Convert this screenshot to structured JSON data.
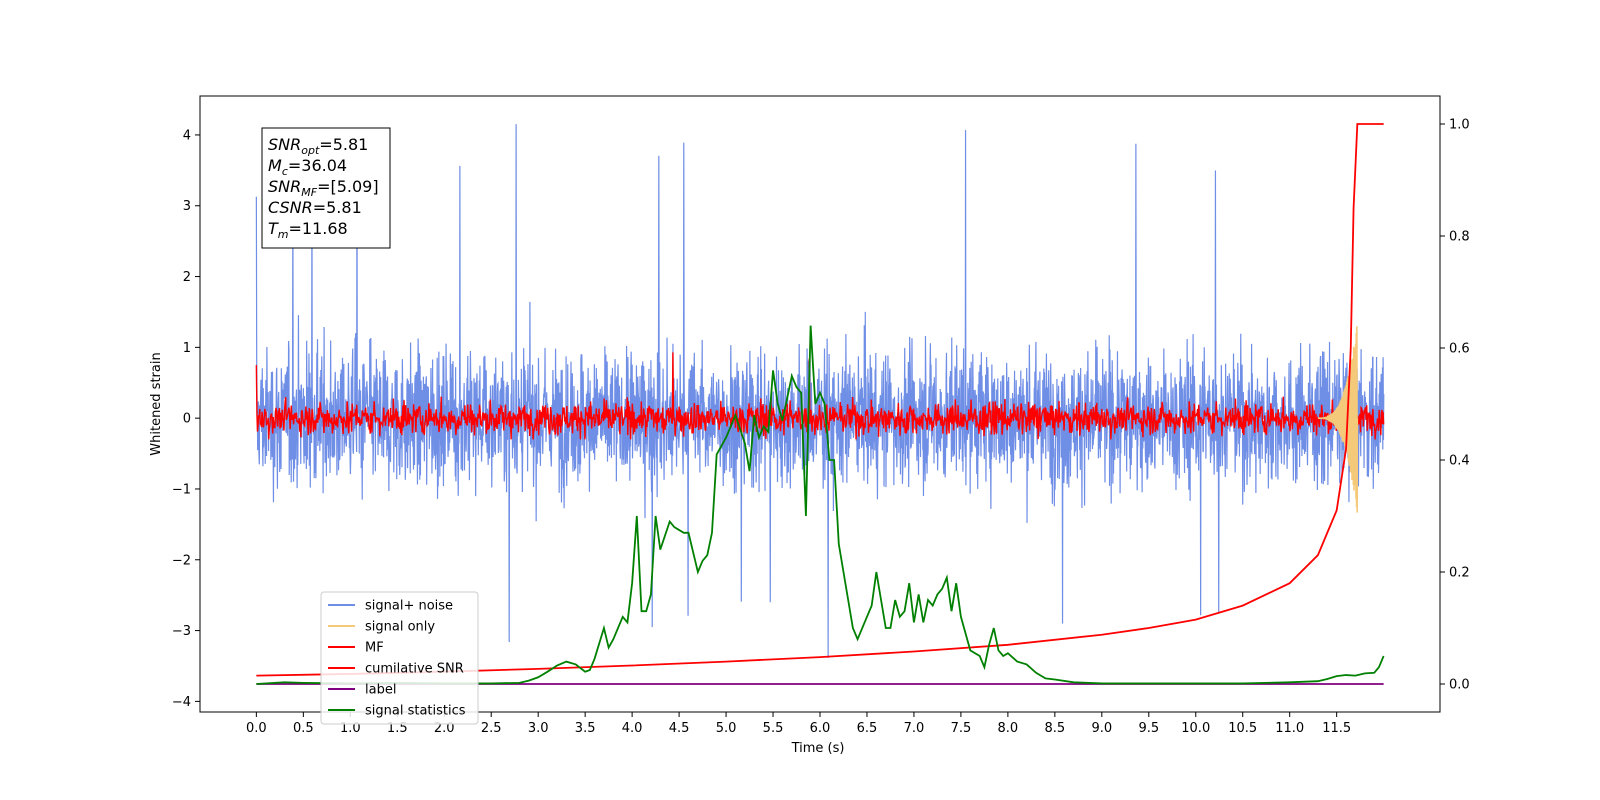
{
  "chart_data": {
    "type": "line",
    "xlabel": "Time (s)",
    "ylabel": "Whitened strain",
    "xlim": [
      -0.6,
      12.6
    ],
    "ylim": [
      -4.15,
      4.55
    ],
    "ylim_right": [
      -0.05,
      1.05
    ],
    "x_ticks": [
      0.0,
      0.5,
      1.0,
      1.5,
      2.0,
      2.5,
      3.0,
      3.5,
      4.0,
      4.5,
      5.0,
      5.5,
      6.0,
      6.5,
      7.0,
      7.5,
      8.0,
      8.5,
      9.0,
      9.5,
      10.0,
      10.5,
      11.0,
      11.5
    ],
    "x_tick_labels": [
      "0.0",
      "0.5",
      "1.0",
      "1.5",
      "2.0",
      "2.5",
      "3.0",
      "3.5",
      "4.0",
      "4.5",
      "5.0",
      "5.5",
      "6.0",
      "6.5",
      "7.0",
      "7.5",
      "8.0",
      "8.5",
      "9.0",
      "9.5",
      "10.0",
      "10.5",
      "11.0",
      "11.5"
    ],
    "y_ticks": [
      -4,
      -3,
      -2,
      -1,
      0,
      1,
      2,
      3,
      4
    ],
    "y_tick_labels": [
      "−4",
      "−3",
      "−2",
      "−1",
      "0",
      "1",
      "2",
      "3",
      "4"
    ],
    "y_ticks_right": [
      0.0,
      0.2,
      0.4,
      0.6,
      0.8,
      1.0
    ],
    "y_tick_labels_right": [
      "0.0",
      "0.2",
      "0.4",
      "0.6",
      "0.8",
      "1.0"
    ],
    "grid": false,
    "legend_position": "lower-left",
    "annotation": [
      {
        "var": "SNR",
        "sub": "opt",
        "rest": "=5.81"
      },
      {
        "var": "M",
        "sub": "c",
        "rest": "=36.04"
      },
      {
        "var": "SNR",
        "sub": "MF",
        "rest": "=[5.09]"
      },
      {
        "var": "CSNR",
        "sub": "",
        "rest": "=5.81"
      },
      {
        "var": "T",
        "sub": "m",
        "rest": "=11.68"
      }
    ],
    "series": [
      {
        "name": "signal+ noise",
        "color": "#6f8ee6",
        "axis": "left",
        "kind": "noise",
        "x_range": [
          0,
          12
        ],
        "mean": 0,
        "band": 1.2,
        "spike_max": 4.17,
        "spike_min": -3.45
      },
      {
        "name": "signal only",
        "color": "#f5c97a",
        "axis": "left",
        "kind": "chirp",
        "x_range": [
          11.3,
          11.72
        ],
        "amplitude_peak": 1.35
      },
      {
        "name": "MF",
        "color": "#ff0000",
        "axis": "left",
        "kind": "noise",
        "x_range": [
          0,
          12
        ],
        "mean": 0,
        "band": 0.3,
        "spike_max": 1.0,
        "spike_min": -0.3
      },
      {
        "name": "cumilative SNR",
        "color": "#ff0000",
        "axis": "right",
        "x": [
          0.0,
          1.0,
          2.0,
          3.0,
          4.0,
          5.0,
          6.0,
          7.0,
          8.0,
          9.0,
          9.5,
          10.0,
          10.5,
          11.0,
          11.3,
          11.5,
          11.6,
          11.65,
          11.68,
          11.72,
          12.0
        ],
        "y": [
          0.015,
          0.018,
          0.022,
          0.027,
          0.033,
          0.04,
          0.048,
          0.058,
          0.07,
          0.088,
          0.1,
          0.115,
          0.14,
          0.18,
          0.23,
          0.31,
          0.42,
          0.6,
          0.85,
          1.0,
          1.0
        ]
      },
      {
        "name": "label",
        "color": "#800080",
        "axis": "right",
        "x": [
          0.0,
          12.0
        ],
        "y": [
          0.0,
          0.0
        ]
      },
      {
        "name": "signal statistics",
        "color": "#008000",
        "axis": "right",
        "x": [
          0.0,
          0.3,
          0.5,
          1.0,
          1.5,
          2.0,
          2.5,
          2.8,
          2.9,
          3.0,
          3.1,
          3.2,
          3.3,
          3.4,
          3.5,
          3.55,
          3.6,
          3.7,
          3.75,
          3.8,
          3.85,
          3.9,
          3.95,
          4.0,
          4.05,
          4.1,
          4.15,
          4.2,
          4.25,
          4.3,
          4.4,
          4.45,
          4.55,
          4.6,
          4.7,
          4.75,
          4.8,
          4.85,
          4.9,
          5.0,
          5.1,
          5.2,
          5.25,
          5.3,
          5.35,
          5.4,
          5.45,
          5.5,
          5.55,
          5.6,
          5.65,
          5.7,
          5.75,
          5.8,
          5.85,
          5.9,
          5.95,
          6.0,
          6.05,
          6.1,
          6.15,
          6.2,
          6.25,
          6.3,
          6.35,
          6.4,
          6.5,
          6.55,
          6.6,
          6.65,
          6.7,
          6.75,
          6.8,
          6.85,
          6.9,
          6.95,
          7.0,
          7.05,
          7.1,
          7.15,
          7.2,
          7.25,
          7.3,
          7.35,
          7.4,
          7.45,
          7.5,
          7.55,
          7.6,
          7.7,
          7.75,
          7.8,
          7.85,
          7.9,
          7.95,
          8.0,
          8.1,
          8.2,
          8.3,
          8.4,
          8.5,
          8.7,
          9.0,
          9.5,
          10.0,
          10.5,
          11.0,
          11.3,
          11.4,
          11.5,
          11.6,
          11.7,
          11.8,
          11.9,
          11.95,
          12.0
        ],
        "y": [
          0.0,
          0.003,
          0.002,
          0.001,
          0.002,
          0.001,
          0.001,
          0.002,
          0.006,
          0.012,
          0.022,
          0.033,
          0.04,
          0.035,
          0.022,
          0.025,
          0.045,
          0.1,
          0.065,
          0.08,
          0.1,
          0.12,
          0.11,
          0.18,
          0.3,
          0.13,
          0.13,
          0.16,
          0.3,
          0.24,
          0.29,
          0.28,
          0.27,
          0.27,
          0.2,
          0.22,
          0.23,
          0.27,
          0.41,
          0.44,
          0.48,
          0.43,
          0.38,
          0.48,
          0.44,
          0.46,
          0.45,
          0.56,
          0.5,
          0.47,
          0.51,
          0.55,
          0.53,
          0.52,
          0.3,
          0.64,
          0.5,
          0.52,
          0.5,
          0.4,
          0.4,
          0.25,
          0.2,
          0.15,
          0.1,
          0.08,
          0.12,
          0.14,
          0.2,
          0.15,
          0.1,
          0.1,
          0.15,
          0.12,
          0.13,
          0.18,
          0.11,
          0.16,
          0.11,
          0.15,
          0.14,
          0.16,
          0.17,
          0.19,
          0.13,
          0.18,
          0.12,
          0.09,
          0.06,
          0.05,
          0.03,
          0.07,
          0.1,
          0.06,
          0.05,
          0.055,
          0.04,
          0.035,
          0.02,
          0.01,
          0.008,
          0.003,
          0.001,
          0.001,
          0.001,
          0.001,
          0.003,
          0.005,
          0.009,
          0.014,
          0.016,
          0.015,
          0.019,
          0.02,
          0.03,
          0.05
        ]
      }
    ]
  }
}
